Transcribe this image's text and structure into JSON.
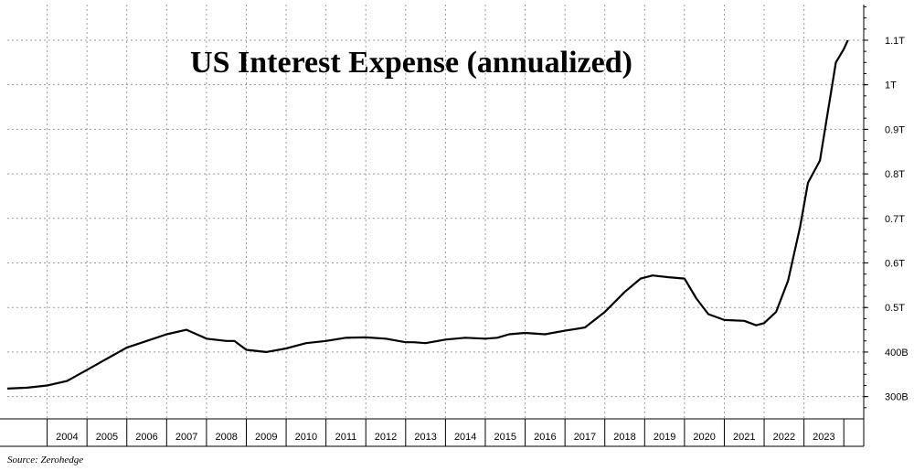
{
  "chart_data": {
    "type": "line",
    "title": "US Interest Expense (annualized)",
    "source": "Source: Zerohedge",
    "x_tick_labels": [
      "2004",
      "2005",
      "2006",
      "2007",
      "2008",
      "2009",
      "2010",
      "2011",
      "2012",
      "2013",
      "2014",
      "2015",
      "2016",
      "2017",
      "2018",
      "2019",
      "2020",
      "2021",
      "2022",
      "2023"
    ],
    "y_tick_labels": [
      {
        "value": 300,
        "label": "300B"
      },
      {
        "value": 400,
        "label": "400B"
      },
      {
        "value": 500,
        "label": "0.5T"
      },
      {
        "value": 600,
        "label": "0.6T"
      },
      {
        "value": 700,
        "label": "0.7T"
      },
      {
        "value": 800,
        "label": "0.8T"
      },
      {
        "value": 900,
        "label": "0.9T"
      },
      {
        "value": 1000,
        "label": "1T"
      },
      {
        "value": 1100,
        "label": "1.1T"
      }
    ],
    "xlim": [
      2003.0,
      2024.5
    ],
    "ylim": [
      250,
      1180
    ],
    "grid": true,
    "y_axis_side": "right",
    "line_color": "#000000",
    "series": [
      {
        "x": [
          2003.0,
          2003.5,
          2004.0,
          2004.5,
          2005.0,
          2005.5,
          2006.0,
          2006.5,
          2007.0,
          2007.5,
          2008.0,
          2008.5,
          2008.7,
          2009.0,
          2009.5,
          2010.0,
          2010.5,
          2011.0,
          2011.5,
          2012.0,
          2012.5,
          2013.0,
          2013.2,
          2013.5,
          2014.0,
          2014.5,
          2015.0,
          2015.3,
          2015.6,
          2016.0,
          2016.5,
          2017.0,
          2017.5,
          2018.0,
          2018.5,
          2018.9,
          2019.2,
          2019.6,
          2020.0,
          2020.3,
          2020.6,
          2021.0,
          2021.5,
          2021.8,
          2022.0,
          2022.3,
          2022.6,
          2022.9,
          2023.1,
          2023.4,
          2023.6,
          2023.8,
          2024.0,
          2024.1
        ],
        "y": [
          318,
          320,
          325,
          335,
          360,
          385,
          410,
          425,
          440,
          450,
          430,
          425,
          425,
          405,
          400,
          408,
          420,
          425,
          432,
          433,
          430,
          422,
          422,
          420,
          428,
          432,
          430,
          432,
          440,
          443,
          440,
          448,
          455,
          490,
          535,
          565,
          572,
          568,
          565,
          520,
          485,
          472,
          470,
          460,
          465,
          490,
          560,
          680,
          780,
          830,
          940,
          1050,
          1080,
          1100
        ]
      }
    ]
  }
}
